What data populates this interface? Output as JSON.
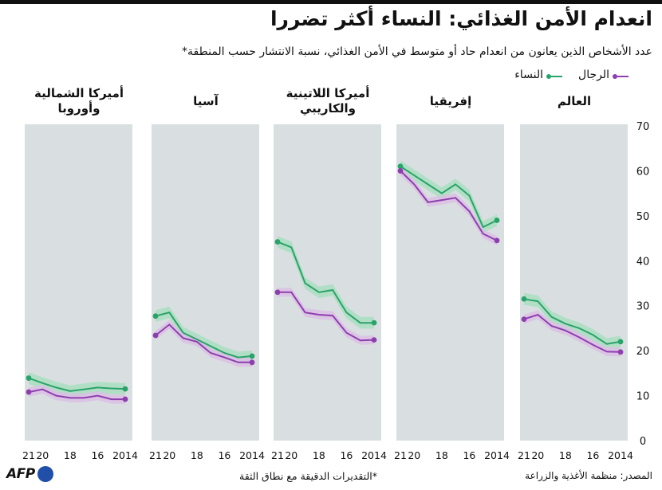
{
  "title": "انعدام الأمن الغذائي: النساء أكثر تضررا",
  "subtitle": "عدد الأشخاص الذين يعانون من انعدام حاد أو متوسط في الأمن الغذائي، نسبة الانتشار حسب المنطقة*",
  "legend": [
    {
      "label": "الرجال",
      "color": "#8e3fae"
    },
    {
      "label": "النساء",
      "color": "#2aa36a"
    }
  ],
  "source": "المصدر: منظمة الأغذية والزراعة",
  "footnote": "*التقديرات الدقيقة مع نطاق الثقة",
  "logo": "AFP",
  "colors": {
    "women": "#2aa36a",
    "women_band": "#a9dfbf",
    "men": "#8e3fae",
    "men_band": "#dbbfe4",
    "panel_bg": "#d9dfe1"
  },
  "chart_data": {
    "type": "line",
    "years": [
      2014,
      2015,
      2016,
      2017,
      2018,
      2019,
      2020,
      2021
    ],
    "x_tick_labels": [
      "2014",
      "16",
      "18",
      "20",
      "21"
    ],
    "x_tick_years": [
      2014,
      2016,
      2018,
      2020,
      2021
    ],
    "ylim": [
      0,
      70
    ],
    "y_ticks": [
      0,
      10,
      20,
      30,
      40,
      50,
      60,
      70
    ],
    "panels": [
      {
        "name": "العالم",
        "title_lines": [
          "العالم"
        ],
        "series": [
          {
            "name": "النساء",
            "values": [
              22.0,
              21.5,
              23.5,
              25.0,
              26.0,
              27.5,
              31.0,
              31.5
            ]
          },
          {
            "name": "الرجال",
            "values": [
              19.7,
              19.8,
              21.3,
              23.0,
              24.5,
              25.5,
              28.0,
              27.0
            ]
          }
        ]
      },
      {
        "name": "إفريقيا",
        "title_lines": [
          "إفريقيا"
        ],
        "series": [
          {
            "name": "النساء",
            "values": [
              49.0,
              47.5,
              54.5,
              57.0,
              55.0,
              57.0,
              59.0,
              61.0
            ]
          },
          {
            "name": "الرجال",
            "values": [
              44.5,
              46.0,
              51.0,
              54.0,
              53.5,
              53.0,
              57.0,
              60.0
            ]
          }
        ]
      },
      {
        "name": "أميركا اللاتينية والكاريبي",
        "title_lines": [
          "أميركا اللاتينية",
          "والكاريبي"
        ],
        "series": [
          {
            "name": "النساء",
            "values": [
              26.2,
              26.2,
              28.5,
              33.5,
              33.0,
              35.0,
              43.0,
              44.2
            ]
          },
          {
            "name": "الرجال",
            "values": [
              22.4,
              22.3,
              24.0,
              27.8,
              28.0,
              28.5,
              33.0,
              33.0
            ]
          }
        ]
      },
      {
        "name": "آسيا",
        "title_lines": [
          "آسيا"
        ],
        "series": [
          {
            "name": "النساء",
            "values": [
              18.8,
              18.5,
              19.5,
              21.0,
              22.5,
              24.0,
              28.5,
              27.7
            ]
          },
          {
            "name": "الرجال",
            "values": [
              17.4,
              17.4,
              18.5,
              19.5,
              22.0,
              22.8,
              25.8,
              23.4
            ]
          }
        ]
      },
      {
        "name": "أميركا الشمالية وأوروبا",
        "title_lines": [
          "أميركا الشمالية",
          "وأوروبا"
        ],
        "series": [
          {
            "name": "النساء",
            "values": [
              11.5,
              11.6,
              11.8,
              11.4,
              11.0,
              11.8,
              12.8,
              13.9
            ]
          },
          {
            "name": "الرجال",
            "values": [
              9.2,
              9.2,
              10.0,
              9.5,
              9.5,
              10.0,
              11.4,
              10.8
            ]
          }
        ]
      }
    ]
  }
}
